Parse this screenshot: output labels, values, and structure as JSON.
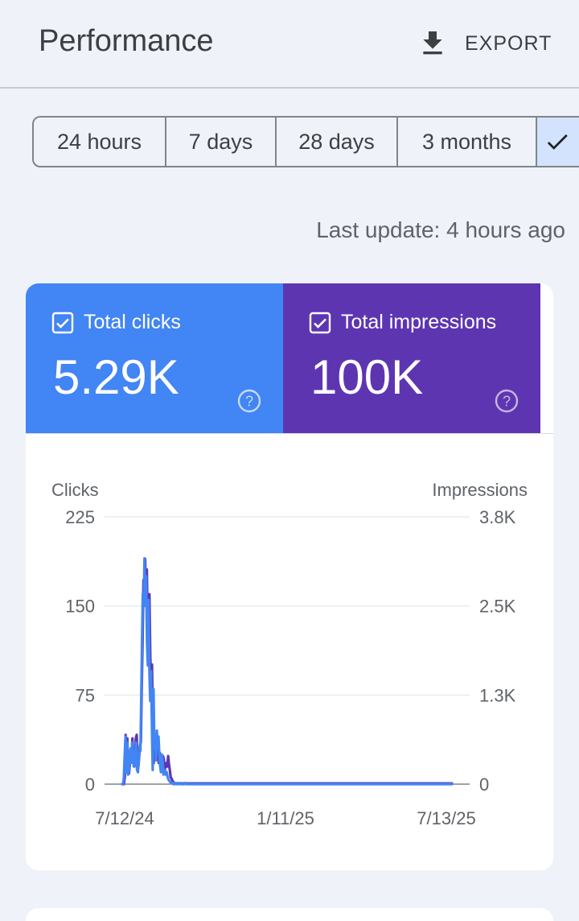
{
  "header": {
    "title": "Performance",
    "export_label": "EXPORT",
    "export_icon": "download-icon"
  },
  "date_ranges": {
    "options": [
      {
        "label": "24 hours",
        "selected": false
      },
      {
        "label": "7 days",
        "selected": false
      },
      {
        "label": "28 days",
        "selected": false
      },
      {
        "label": "3 months",
        "selected": false
      },
      {
        "label": "",
        "selected": true
      }
    ]
  },
  "last_update": "Last update: 4 hours ago",
  "metrics": {
    "clicks": {
      "label": "Total clicks",
      "value": "5.29K",
      "checked": true,
      "color": "#4285f4"
    },
    "impressions": {
      "label": "Total impressions",
      "value": "100K",
      "checked": true,
      "color": "#5e35b1"
    }
  },
  "chart_data": {
    "type": "line",
    "left_axis": {
      "title": "Clicks",
      "ticks": [
        "0",
        "75",
        "150",
        "225"
      ],
      "range": [
        0,
        225
      ]
    },
    "right_axis": {
      "title": "Impressions",
      "ticks": [
        "0",
        "1.3K",
        "2.5K",
        "3.8K"
      ],
      "range": [
        0,
        3800
      ]
    },
    "x_labels": [
      "7/12/24",
      "1/11/25",
      "7/13/25"
    ],
    "grid": true,
    "series": [
      {
        "color": "#5e35b1",
        "axis": "right",
        "values": [
          0,
          0,
          0,
          100,
          700,
          300,
          650,
          200,
          150,
          300,
          500,
          350,
          650,
          450,
          250,
          300,
          650,
          700,
          300,
          250,
          400,
          550,
          600,
          1400,
          2100,
          2900,
          2750,
          3200,
          2600,
          3050,
          2200,
          1850,
          2700,
          1800,
          1400,
          1700,
          1000,
          300,
          650,
          500,
          700,
          350,
          450,
          300,
          450,
          380,
          250,
          200,
          400,
          350,
          200,
          250,
          300,
          250,
          400,
          280,
          200,
          100,
          80,
          50,
          30,
          20,
          15,
          10,
          10,
          10,
          10,
          10,
          10,
          10,
          10,
          10,
          10,
          10,
          10,
          10,
          10,
          10,
          10,
          10,
          10,
          10,
          10,
          10,
          10,
          10,
          10,
          10,
          10,
          10,
          10,
          10,
          10,
          10,
          10,
          10,
          10,
          10,
          10,
          10,
          10,
          10,
          10,
          10,
          10,
          10,
          10,
          10,
          10,
          10,
          10,
          10,
          10,
          10,
          10,
          10,
          10,
          10,
          10,
          10,
          10,
          10,
          10,
          10,
          10,
          10,
          10,
          10,
          10,
          10,
          10,
          10,
          10,
          10,
          10,
          10,
          10,
          10,
          10,
          10,
          10,
          10,
          10,
          10,
          10,
          10,
          10,
          10,
          10,
          10,
          10,
          10,
          10,
          10,
          10,
          10,
          10,
          10,
          10,
          10,
          10,
          10,
          10,
          10,
          10,
          10,
          10,
          10,
          10,
          10,
          10,
          10,
          10,
          10,
          10,
          10,
          10,
          10,
          10,
          10,
          10,
          10,
          10,
          10,
          10,
          10,
          10,
          10,
          10,
          10,
          10,
          10,
          10,
          10,
          10,
          10,
          10,
          10,
          10,
          10,
          10,
          10,
          10,
          10,
          10,
          10,
          10,
          10,
          10,
          10,
          10,
          10,
          10,
          10,
          10,
          10,
          10,
          10,
          10,
          10,
          10,
          10,
          10,
          10,
          10,
          10,
          10,
          10,
          10,
          10,
          10,
          10,
          10,
          10,
          10,
          10,
          10,
          10,
          10,
          10,
          10,
          10,
          10,
          10,
          10,
          10,
          10,
          10,
          10,
          10,
          10,
          10,
          10,
          10,
          10,
          10,
          10,
          10,
          10,
          10,
          10,
          10,
          10,
          10,
          10,
          10,
          10,
          10,
          10,
          10,
          10,
          10,
          10,
          10,
          10,
          10,
          10,
          10,
          10,
          10,
          10,
          10,
          10,
          10,
          10,
          10,
          10,
          10,
          10,
          10,
          10,
          10,
          10,
          10,
          10,
          10,
          10,
          10,
          10,
          10,
          10,
          10,
          10,
          10,
          10,
          10,
          10,
          10,
          10,
          10,
          10,
          10,
          10,
          10,
          10,
          10,
          10,
          10,
          10,
          10,
          10,
          10,
          10,
          10,
          10,
          10,
          10,
          10,
          10,
          10,
          10,
          10,
          10,
          10,
          10,
          10,
          10,
          10,
          10,
          10,
          10,
          10,
          10,
          10,
          10,
          10,
          10,
          10,
          10,
          10,
          10,
          10,
          10,
          10,
          10,
          10,
          10,
          10,
          10,
          10,
          10,
          10,
          10,
          10,
          10,
          10,
          10,
          10,
          10,
          10,
          10,
          10,
          10,
          10,
          10,
          10,
          10,
          10,
          10,
          10,
          10,
          10,
          10,
          10,
          10,
          10,
          10,
          10,
          10
        ]
      },
      {
        "color": "#4285f4",
        "axis": "left",
        "values": [
          0,
          0,
          5,
          25,
          40,
          10,
          35,
          8,
          10,
          20,
          30,
          18,
          35,
          25,
          15,
          18,
          30,
          35,
          12,
          10,
          20,
          30,
          28,
          70,
          120,
          160,
          150,
          190,
          150,
          175,
          120,
          100,
          155,
          95,
          70,
          95,
          50,
          12,
          80,
          30,
          40,
          20,
          45,
          30,
          40,
          25,
          15,
          10,
          25,
          20,
          8,
          10,
          12,
          8,
          10,
          6,
          4,
          3,
          2,
          1,
          1,
          1,
          0,
          0,
          1,
          0,
          0,
          1,
          0,
          0,
          0,
          1,
          0,
          0,
          0,
          0,
          1,
          0,
          0,
          0,
          0,
          0,
          0,
          0,
          0,
          0,
          0,
          0,
          0,
          0,
          0,
          0,
          0,
          0,
          0,
          0,
          0,
          0,
          0,
          0,
          0,
          0,
          0,
          0,
          0,
          0,
          0,
          0,
          0,
          0,
          0,
          0,
          0,
          0,
          0,
          0,
          0,
          0,
          0,
          0,
          0,
          0,
          0,
          0,
          0,
          0,
          0,
          0,
          0,
          0,
          0,
          0,
          0,
          0,
          0,
          0,
          0,
          0,
          0,
          0,
          0,
          0,
          0,
          0,
          0,
          0,
          0,
          0,
          0,
          0,
          0,
          0,
          0,
          0,
          0,
          0,
          0,
          0,
          0,
          0,
          0,
          0,
          0,
          0,
          0,
          0,
          0,
          0,
          0,
          0,
          0,
          0,
          0,
          0,
          0,
          0,
          0,
          0,
          0,
          0,
          0,
          0,
          0,
          0,
          0,
          0,
          0,
          0,
          0,
          0,
          0,
          0,
          0,
          0,
          0,
          0,
          0,
          0,
          0,
          0,
          0,
          0,
          0,
          0,
          0,
          0,
          0,
          0,
          0,
          0,
          0,
          0,
          0,
          0,
          0,
          0,
          0,
          0,
          0,
          0,
          0,
          0,
          0,
          0,
          0,
          0,
          0,
          0,
          0,
          0,
          0,
          0,
          0,
          0,
          0,
          0,
          0,
          0,
          0,
          0,
          0,
          0,
          0,
          0,
          0,
          0,
          0,
          0,
          0,
          0,
          0,
          0,
          0,
          0,
          0,
          0,
          0,
          0,
          0,
          0,
          0,
          0,
          0,
          0,
          0,
          0,
          0,
          0,
          0,
          0,
          0,
          0,
          0,
          0,
          0,
          0,
          0,
          0,
          0,
          0,
          0,
          0,
          0,
          0,
          0,
          0,
          0,
          0,
          0,
          0,
          0,
          0,
          0,
          0,
          0,
          0,
          0,
          0,
          0,
          0,
          0,
          0,
          0,
          0,
          0,
          0,
          0,
          0,
          0,
          0,
          0,
          0,
          0,
          0,
          0,
          0,
          0,
          0,
          0,
          0,
          0,
          0,
          0,
          0,
          0,
          0,
          0,
          0,
          0,
          0,
          0,
          0,
          0,
          0,
          0,
          0,
          0,
          0,
          0,
          0,
          0,
          0,
          0,
          0,
          0,
          0,
          0,
          0,
          0,
          0,
          0,
          0,
          0,
          0,
          0,
          0,
          0,
          0,
          0,
          0,
          0,
          0,
          0,
          0,
          0,
          0,
          0,
          0,
          0,
          0,
          0,
          0,
          0,
          0,
          0,
          0,
          0,
          0,
          0,
          0,
          0,
          0,
          0,
          0,
          0,
          0,
          0,
          0,
          0,
          0,
          0,
          0,
          0,
          0,
          0,
          0,
          0,
          0,
          0,
          0,
          0
        ]
      }
    ]
  }
}
